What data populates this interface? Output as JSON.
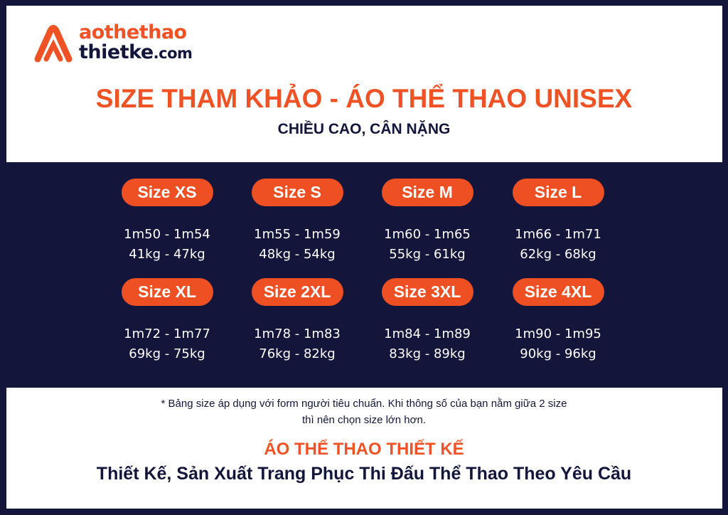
{
  "logo": {
    "line1": "aothethao",
    "line2": "thietke",
    "suffix": ".com"
  },
  "title": "SIZE THAM KHẢO - ÁO THỂ THAO UNISEX",
  "subtitle": "CHIỀU CAO, CÂN NẶNG",
  "sizes": [
    {
      "label": "Size XS",
      "height": "1m50 - 1m54",
      "weight": "41kg - 47kg"
    },
    {
      "label": "Size S",
      "height": "1m55 - 1m59",
      "weight": "48kg - 54kg"
    },
    {
      "label": "Size M",
      "height": "1m60 - 1m65",
      "weight": "55kg - 61kg"
    },
    {
      "label": "Size L",
      "height": "1m66 - 1m71",
      "weight": "62kg - 68kg"
    },
    {
      "label": "Size XL",
      "height": "1m72 - 1m77",
      "weight": "69kg - 75kg"
    },
    {
      "label": "Size 2XL",
      "height": "1m78 - 1m83",
      "weight": "76kg - 82kg"
    },
    {
      "label": "Size 3XL",
      "height": "1m84 - 1m89",
      "weight": "83kg - 89kg"
    },
    {
      "label": "Size 4XL",
      "height": "1m90 - 1m95",
      "weight": "90kg - 96kg"
    }
  ],
  "note_line1": "* Bảng size áp dụng với form người tiêu chuẩn. Khi thông số của bạn nằm giữa 2 size",
  "note_line2": "thì nên chọn size lớn hơn.",
  "brand": "ÁO THỂ THAO THIẾT KẾ",
  "slogan": "Thiết Kế, Sản Xuất Trang Phục Thi Đấu Thể Thao Theo Yêu Cầu",
  "colors": {
    "accent": "#ee4f23",
    "navy": "#13153a",
    "white": "#ffffff"
  }
}
